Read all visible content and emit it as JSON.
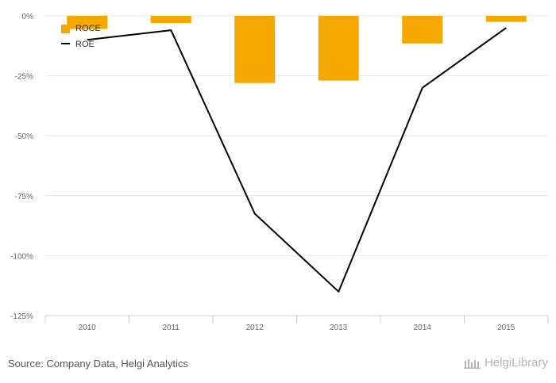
{
  "chart_data": {
    "type": "bar+line",
    "categories": [
      "2010",
      "2011",
      "2012",
      "2013",
      "2014",
      "2015"
    ],
    "series": [
      {
        "name": "ROCE",
        "kind": "bar",
        "color": "#f5a800",
        "values": [
          -5.5,
          -3,
          -28,
          -27,
          -11.5,
          -2.5
        ]
      },
      {
        "name": "ROE",
        "kind": "line",
        "color": "#000000",
        "values": [
          -10,
          -6,
          -82.5,
          -115,
          -30,
          -5
        ]
      }
    ],
    "yticks": [
      0,
      -25,
      -50,
      -75,
      -100,
      -125
    ],
    "ytick_labels": [
      "0%",
      "-25%",
      "-50%",
      "-75%",
      "-100%",
      "-125%"
    ],
    "ylim": [
      -125,
      0
    ],
    "grid": true,
    "legend_position": "top-left"
  },
  "footer": {
    "source": "Source: Company Data, Helgi Analytics",
    "brand": "HelgiLibrary"
  }
}
